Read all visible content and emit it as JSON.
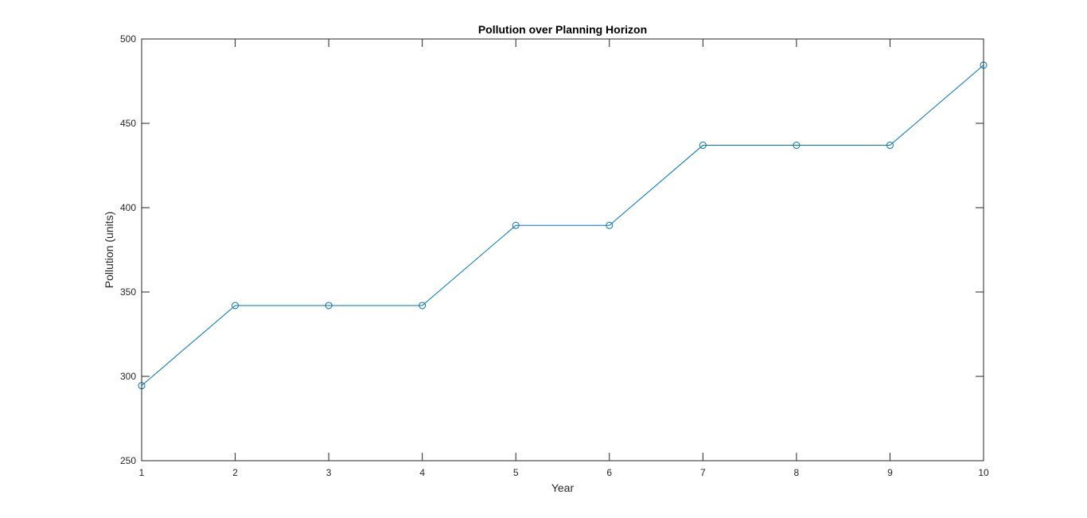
{
  "chart_data": {
    "type": "line",
    "title": "Pollution over Planning Horizon",
    "xlabel": "Year",
    "ylabel": "Pollution (units)",
    "xlim": [
      1,
      10
    ],
    "ylim": [
      250,
      500
    ],
    "xticks": [
      1,
      2,
      3,
      4,
      5,
      6,
      7,
      8,
      9,
      10
    ],
    "yticks": [
      250,
      300,
      350,
      400,
      450,
      500
    ],
    "grid": false,
    "box": true,
    "marker": "circle",
    "series": [
      {
        "x": [
          1,
          2,
          3,
          4,
          5,
          6,
          7,
          8,
          9,
          10
        ],
        "values": [
          294.5,
          342,
          342,
          342,
          389.5,
          389.5,
          437,
          437,
          437,
          484.5
        ],
        "color": "#0072BD"
      }
    ]
  }
}
